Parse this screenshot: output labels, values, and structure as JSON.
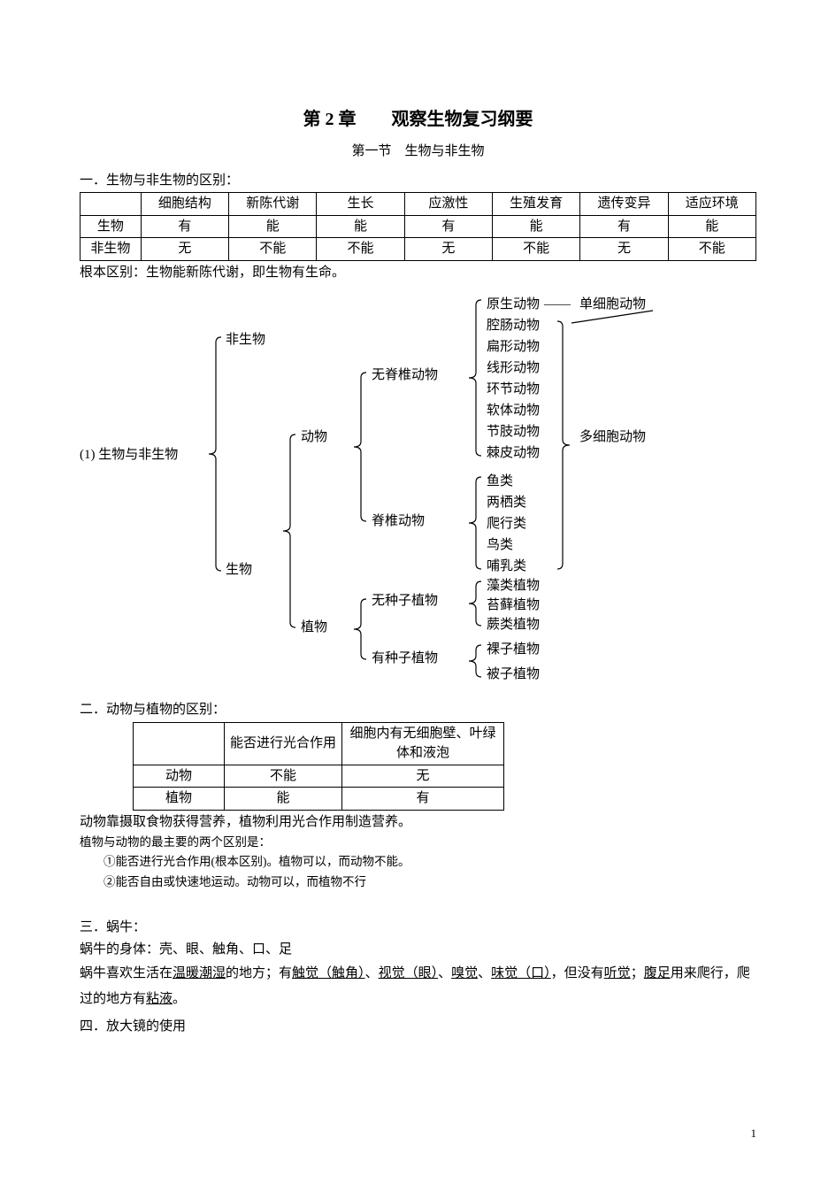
{
  "chapter_title": "第 2 章　　观察生物复习纲要",
  "section_title": "第一节　生物与非生物",
  "h1": "一．生物与非生物的区别：",
  "table1": {
    "header": [
      "",
      "细胞结构",
      "新陈代谢",
      "生长",
      "应激性",
      "生殖发育",
      "遗传变异",
      "适应环境"
    ],
    "rows": [
      [
        "生物",
        "有",
        "能",
        "能",
        "有",
        "能",
        "有",
        "能"
      ],
      [
        "非生物",
        "无",
        "不能",
        "不能",
        "无",
        "不能",
        "无",
        "不能"
      ]
    ],
    "col_widths_pct": [
      9,
      13,
      13,
      13,
      13,
      13,
      13,
      13
    ]
  },
  "note1": "根本区别：生物能新陈代谢，即生物有生命。",
  "diagram": {
    "root": "(1) 生物与非生物",
    "branch_nonliving": "非生物",
    "branch_living": "生物",
    "animal": "动物",
    "plant": "植物",
    "invertebrate": "无脊椎动物",
    "vertebrate": "脊椎动物",
    "invertebrate_list": [
      "原生动物",
      "腔肠动物",
      "扁形动物",
      "线形动物",
      "环节动物",
      "软体动物",
      "节肢动物",
      "棘皮动物"
    ],
    "vertebrate_list": [
      "鱼类",
      "两栖类",
      "爬行类",
      "鸟类",
      "哺乳类"
    ],
    "seedless": "无种子植物",
    "seeded": "有种子植物",
    "seedless_list": [
      "藻类植物",
      "苔藓植物",
      "蕨类植物"
    ],
    "seeded_list": [
      "裸子植物",
      "被子植物"
    ],
    "single_cell": "单细胞动物",
    "multi_cell": "多细胞动物",
    "dash": "——",
    "stroke_color": "#000000"
  },
  "h2": "二．动物与植物的区别：",
  "table2": {
    "header": [
      "",
      "能否进行光合作用",
      "细胞内有无细胞壁、叶绿体和液泡"
    ],
    "rows": [
      [
        "动物",
        "不能",
        "无"
      ],
      [
        "植物",
        "能",
        "有"
      ]
    ]
  },
  "line_a": "动物靠摄取食物获得营养，植物利用光合作用制造营养。",
  "line_b": "植物与动物的最主要的两个区别是：",
  "line_c": "①能否进行光合作用(根本区别)。植物可以，而动物不能。",
  "line_d": "②能否自由或快速地运动。动物可以，而植物不行",
  "h3": "三．蜗牛：",
  "snail_body": "蜗牛的身体：壳、眼、触角、口、足",
  "snail_line": {
    "t0": "蜗牛喜欢生活在",
    "u0": "温暖潮湿",
    "t1": "的地方；有",
    "u1": "触觉（触角）",
    "t2": "、",
    "u2": "视觉（眼）",
    "t3": "、",
    "u3": "嗅觉",
    "t4": "、",
    "u4": "味觉（口）",
    "t5": "，但没有",
    "u5": "听觉",
    "t6": "；",
    "u6": "腹足",
    "t7": "用来爬行，爬过的地方有",
    "u7": "粘液",
    "t8": "。"
  },
  "h4": "四．放大镜的使用",
  "page_num": "1"
}
